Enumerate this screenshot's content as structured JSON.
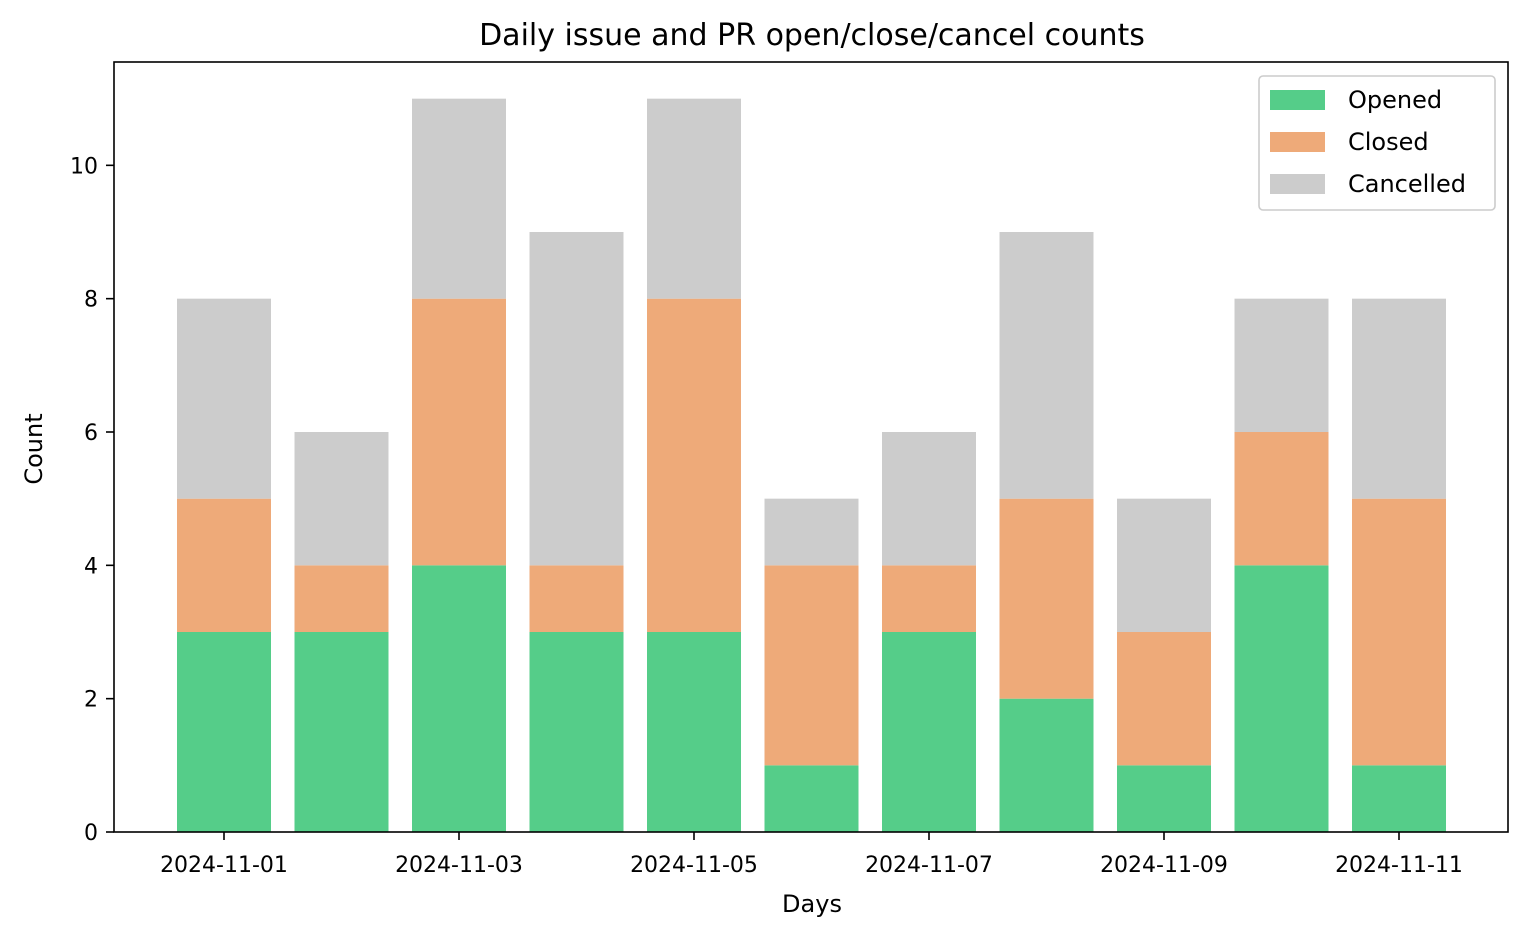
{
  "chart_data": {
    "type": "bar",
    "stacked": true,
    "title": "Daily issue and PR open/close/cancel counts",
    "xlabel": "Days",
    "ylabel": "Count",
    "categories": [
      "2024-11-01",
      "2024-11-02",
      "2024-11-03",
      "2024-11-04",
      "2024-11-05",
      "2024-11-06",
      "2024-11-07",
      "2024-11-08",
      "2024-11-09",
      "2024-11-10",
      "2024-11-11"
    ],
    "x_tick_labels": [
      "2024-11-01",
      "2024-11-03",
      "2024-11-05",
      "2024-11-07",
      "2024-11-09",
      "2024-11-11"
    ],
    "y_ticks": [
      "0",
      "2",
      "4",
      "6",
      "8",
      "10"
    ],
    "ylim": [
      0,
      11.55
    ],
    "series": [
      {
        "name": "Opened",
        "color": "#55cd89",
        "values": [
          3,
          3,
          4,
          3,
          3,
          1,
          3,
          2,
          1,
          4,
          1
        ]
      },
      {
        "name": "Closed",
        "color": "#eeaa79",
        "values": [
          2,
          1,
          4,
          1,
          5,
          3,
          1,
          3,
          2,
          2,
          4
        ]
      },
      {
        "name": "Cancelled",
        "color": "#cccccc",
        "values": [
          3,
          2,
          3,
          5,
          3,
          1,
          2,
          4,
          2,
          2,
          3
        ]
      }
    ],
    "grid": false,
    "legend_position": "top-right"
  }
}
